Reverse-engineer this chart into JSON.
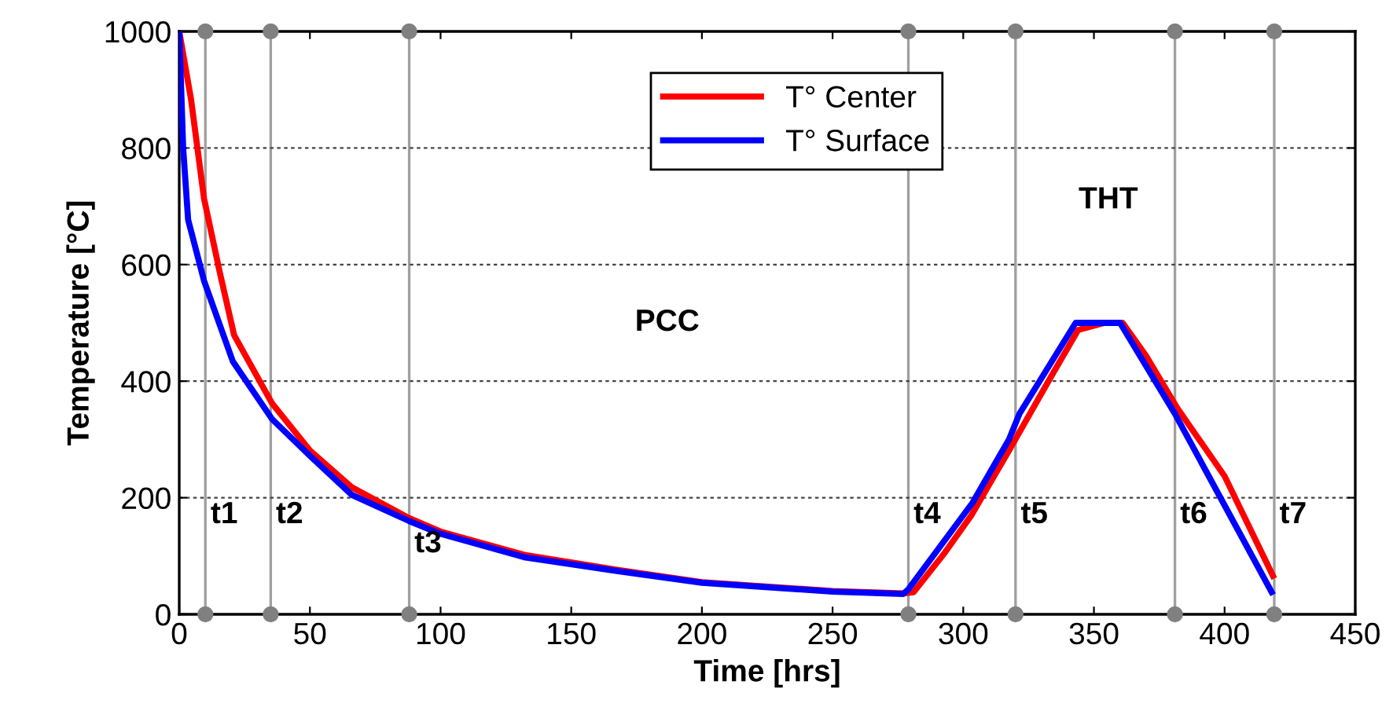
{
  "chart_data": {
    "type": "line",
    "xlabel": "Time [hrs]",
    "ylabel": "Temperature [°C]",
    "series": [
      {
        "name": "T° Center",
        "color": "#ff0000",
        "x": [
          0,
          4.5,
          9.5,
          15.5,
          21,
          35.5,
          50,
          66,
          88,
          100,
          132,
          168,
          200,
          250,
          277,
          281,
          293,
          303,
          317.5,
          333.5,
          344,
          354,
          361,
          370,
          382,
          400,
          418.5
        ],
        "values": [
          1000,
          884,
          713,
          587,
          479,
          362,
          281,
          218,
          165,
          142,
          102,
          76,
          55,
          40,
          36,
          38,
          106,
          169,
          281,
          407,
          488,
          500,
          500,
          443,
          353,
          237,
          66
        ]
      },
      {
        "name": "T° Surface",
        "color": "#0000ff",
        "x": [
          0,
          1.5,
          3.4,
          9.5,
          20.5,
          35.5,
          50,
          66,
          88,
          100,
          132,
          168,
          200,
          250,
          277,
          279,
          303.5,
          317.5,
          321.5,
          343,
          360,
          381,
          418
        ],
        "values": [
          1000,
          800,
          677,
          572,
          434,
          335,
          272,
          205,
          160,
          138,
          98,
          74,
          54,
          39,
          35,
          43,
          191,
          300,
          344,
          500,
          500,
          344,
          38
        ]
      },
      {
        "type": "scatter",
        "color": "#808080",
        "marker": "circle",
        "x": [
          10,
          10,
          35,
          35,
          88,
          88,
          279,
          279,
          320,
          320,
          381,
          381,
          419,
          419
        ],
        "values": [
          0,
          1000,
          0,
          1000,
          0,
          1000,
          0,
          1000,
          0,
          1000,
          0,
          1000,
          0,
          1000
        ]
      }
    ],
    "xlim": [
      0,
      450
    ],
    "xticks": [
      0,
      50,
      100,
      150,
      200,
      250,
      300,
      350,
      400,
      450
    ],
    "ylim": [
      0,
      1000
    ],
    "yticks": [
      0,
      200,
      400,
      600,
      800,
      1000
    ],
    "grid": "y",
    "legend": "top",
    "marker": "none",
    "line_style": "solid",
    "ref_lines": [
      {
        "axis": "x",
        "value": 10,
        "label": "t1",
        "color": "#a0a0a0"
      },
      {
        "axis": "x",
        "value": 35,
        "label": "t2",
        "color": "#a0a0a0"
      },
      {
        "axis": "x",
        "value": 88,
        "label": "t3",
        "color": "#a0a0a0"
      },
      {
        "axis": "x",
        "value": 279,
        "label": "t4",
        "color": "#a0a0a0"
      },
      {
        "axis": "x",
        "value": 320,
        "label": "t5",
        "color": "#a0a0a0"
      },
      {
        "axis": "x",
        "value": 381,
        "label": "t6",
        "color": "#a0a0a0"
      },
      {
        "axis": "x",
        "value": 419,
        "label": "t7",
        "color": "#a0a0a0"
      }
    ],
    "annotations": [
      "PCC",
      "THT"
    ]
  }
}
